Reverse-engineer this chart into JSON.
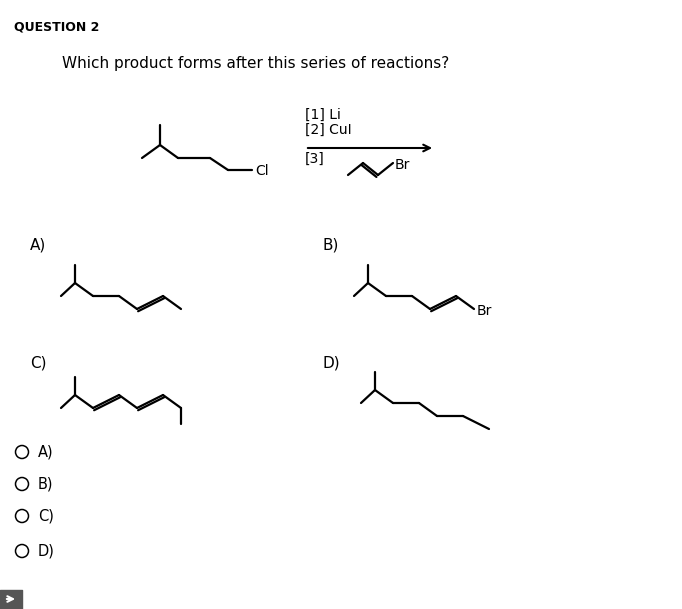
{
  "title": "QUESTION 2",
  "question": "Which product forms after this series of reactions?",
  "bg_color": "#ffffff",
  "text_color": "#000000",
  "radio_labels": [
    "A)",
    "B)",
    "C)",
    "D)"
  ]
}
